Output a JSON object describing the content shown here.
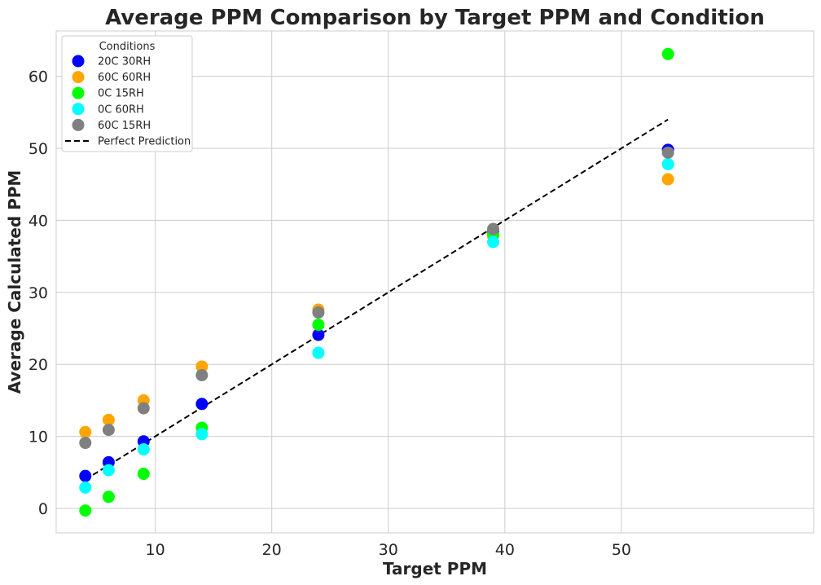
{
  "chart_data": {
    "type": "scatter",
    "title": "Average PPM Comparison by Target PPM and Condition",
    "xlabel": "Target PPM",
    "ylabel": "Average Calculated PPM",
    "xlim": [
      1.5,
      66.5
    ],
    "ylim": [
      -3.4,
      66.3
    ],
    "xticks": [
      10,
      20,
      30,
      40,
      50
    ],
    "yticks": [
      0,
      10,
      20,
      30,
      40,
      50,
      60
    ],
    "grid": true,
    "legend": {
      "title": "Conditions",
      "position": "top-left"
    },
    "x": [
      4,
      6,
      9,
      14,
      24,
      39,
      54
    ],
    "series": [
      {
        "name": "20C 30RH",
        "color": "#0000ff",
        "values": [
          4.5,
          6.4,
          9.3,
          14.5,
          24.1,
          38.4,
          49.8
        ]
      },
      {
        "name": "60C 60RH",
        "color": "#ffa500",
        "values": [
          10.6,
          12.3,
          15.0,
          19.7,
          27.6,
          37.8,
          45.7
        ]
      },
      {
        "name": "0C 15RH",
        "color": "#00ff00",
        "values": [
          -0.3,
          1.6,
          4.8,
          11.2,
          25.5,
          38.1,
          63.1
        ]
      },
      {
        "name": "0C 60RH",
        "color": "#00ffff",
        "values": [
          2.9,
          5.3,
          8.2,
          10.3,
          21.6,
          37.0,
          47.8
        ]
      },
      {
        "name": "60C 15RH",
        "color": "#808080",
        "values": [
          9.1,
          10.9,
          13.9,
          18.5,
          27.2,
          38.8,
          49.4
        ]
      }
    ],
    "reference_line": {
      "name": "Perfect Prediction",
      "color": "#000000",
      "style": "dashed",
      "x": [
        4,
        54
      ],
      "y": [
        4,
        54
      ]
    }
  }
}
